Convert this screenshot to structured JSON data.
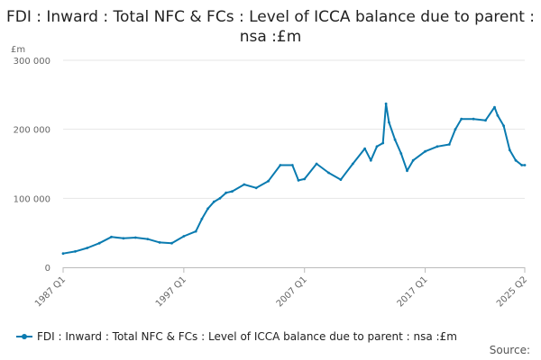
{
  "chart_data": {
    "type": "line",
    "title": "FDI : Inward : Total NFC & FCs : Level of ICCA balance due to parent : nsa :£m",
    "ylabel": "£m",
    "xlabel": "",
    "ylim": [
      0,
      300000
    ],
    "y_ticks": [
      {
        "value": 0,
        "label": "0"
      },
      {
        "value": 100000,
        "label": "100 000"
      },
      {
        "value": 200000,
        "label": "200 000"
      },
      {
        "value": 300000,
        "label": "300 000"
      }
    ],
    "x_range": [
      1987.0,
      2025.25
    ],
    "x_ticks": [
      {
        "value": 1987.0,
        "label": "1987 Q1"
      },
      {
        "value": 1997.0,
        "label": "1997 Q1"
      },
      {
        "value": 2007.0,
        "label": "2007 Q1"
      },
      {
        "value": 2017.0,
        "label": "2017 Q1"
      },
      {
        "value": 2025.25,
        "label": "2025 Q2"
      }
    ],
    "grid": true,
    "legend_position": "bottom",
    "series": [
      {
        "name": "FDI : Inward : Total NFC & FCs : Level of ICCA balance due to parent : nsa :£m",
        "color": "#0a7bb0",
        "points": [
          [
            1987.0,
            20000
          ],
          [
            1988.0,
            23000
          ],
          [
            1989.0,
            28000
          ],
          [
            1990.0,
            35000
          ],
          [
            1991.0,
            44000
          ],
          [
            1992.0,
            42000
          ],
          [
            1993.0,
            43000
          ],
          [
            1994.0,
            41000
          ],
          [
            1995.0,
            36000
          ],
          [
            1996.0,
            35000
          ],
          [
            1997.0,
            45000
          ],
          [
            1998.0,
            52000
          ],
          [
            1998.5,
            70000
          ],
          [
            1999.0,
            85000
          ],
          [
            1999.5,
            95000
          ],
          [
            2000.0,
            100000
          ],
          [
            2000.5,
            108000
          ],
          [
            2001.0,
            110000
          ],
          [
            2002.0,
            120000
          ],
          [
            2003.0,
            115000
          ],
          [
            2004.0,
            125000
          ],
          [
            2005.0,
            148000
          ],
          [
            2006.0,
            148000
          ],
          [
            2006.5,
            126000
          ],
          [
            2007.0,
            128000
          ],
          [
            2008.0,
            150000
          ],
          [
            2009.0,
            137000
          ],
          [
            2010.0,
            127000
          ],
          [
            2011.0,
            150000
          ],
          [
            2012.0,
            172000
          ],
          [
            2012.5,
            155000
          ],
          [
            2013.0,
            175000
          ],
          [
            2013.5,
            180000
          ],
          [
            2013.75,
            237000
          ],
          [
            2014.0,
            210000
          ],
          [
            2014.5,
            185000
          ],
          [
            2015.0,
            165000
          ],
          [
            2015.5,
            140000
          ],
          [
            2016.0,
            155000
          ],
          [
            2017.0,
            168000
          ],
          [
            2018.0,
            175000
          ],
          [
            2019.0,
            178000
          ],
          [
            2019.5,
            200000
          ],
          [
            2020.0,
            215000
          ],
          [
            2021.0,
            215000
          ],
          [
            2022.0,
            213000
          ],
          [
            2022.75,
            232000
          ],
          [
            2023.0,
            220000
          ],
          [
            2023.5,
            205000
          ],
          [
            2024.0,
            170000
          ],
          [
            2024.5,
            155000
          ],
          [
            2025.0,
            148000
          ],
          [
            2025.25,
            148000
          ]
        ]
      }
    ]
  },
  "source_label": "Source:"
}
